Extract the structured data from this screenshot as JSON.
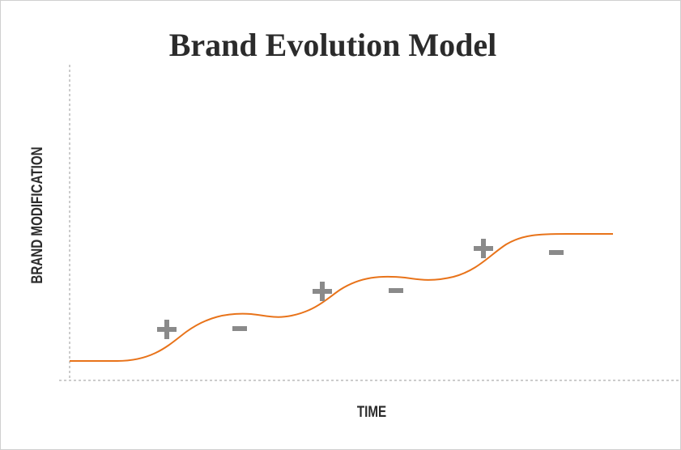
{
  "title": "Brand Evolution Model",
  "y_axis_label": "BRAND MODIFICATION",
  "x_axis_label": "TIME"
}
